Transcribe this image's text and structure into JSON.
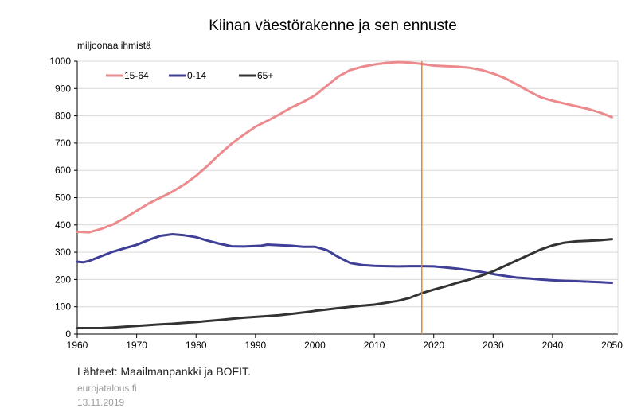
{
  "chart_data": {
    "type": "line",
    "title": "Kiinan väestörakenne ja sen ennuste",
    "ylabel": "miljoonaa ihmistä",
    "xlabel": "",
    "xlim": [
      1960,
      2051
    ],
    "ylim": [
      0,
      1000
    ],
    "x_ticks": [
      1960,
      1970,
      1980,
      1990,
      2000,
      2010,
      2020,
      2030,
      2040,
      2050
    ],
    "y_ticks": [
      0,
      100,
      200,
      300,
      400,
      500,
      600,
      700,
      800,
      900,
      1000
    ],
    "grid": "horizontal",
    "legend_position": "top-left",
    "vertical_marker_x": 2018,
    "vertical_marker_color": "#e8862a",
    "series": [
      {
        "name": "15-64",
        "color": "#ec8a8e",
        "x": [
          1960,
          1962,
          1964,
          1966,
          1968,
          1970,
          1972,
          1974,
          1976,
          1978,
          1980,
          1982,
          1984,
          1986,
          1988,
          1990,
          1992,
          1994,
          1996,
          1998,
          2000,
          2002,
          2004,
          2006,
          2008,
          2010,
          2012,
          2014,
          2016,
          2018,
          2020,
          2022,
          2024,
          2026,
          2028,
          2030,
          2032,
          2034,
          2036,
          2038,
          2040,
          2042,
          2044,
          2046,
          2048,
          2050
        ],
        "values": [
          375,
          373,
          385,
          402,
          425,
          452,
          478,
          500,
          522,
          548,
          580,
          618,
          660,
          698,
          730,
          760,
          782,
          805,
          830,
          850,
          875,
          910,
          945,
          968,
          980,
          988,
          994,
          997,
          995,
          990,
          984,
          982,
          980,
          976,
          968,
          955,
          938,
          915,
          890,
          868,
          855,
          845,
          835,
          825,
          812,
          795
        ]
      },
      {
        "name": "0-14",
        "color": "#3f3f97",
        "x": [
          1960,
          1961,
          1962,
          1964,
          1966,
          1968,
          1970,
          1972,
          1974,
          1976,
          1978,
          1980,
          1982,
          1984,
          1986,
          1988,
          1990,
          1991,
          1992,
          1994,
          1996,
          1998,
          2000,
          2002,
          2004,
          2006,
          2008,
          2010,
          2012,
          2014,
          2016,
          2018,
          2020,
          2022,
          2024,
          2026,
          2028,
          2030,
          2032,
          2034,
          2036,
          2038,
          2040,
          2042,
          2044,
          2046,
          2048,
          2050
        ],
        "values": [
          265,
          263,
          268,
          285,
          302,
          315,
          327,
          345,
          360,
          366,
          362,
          355,
          342,
          331,
          322,
          321,
          323,
          324,
          328,
          326,
          324,
          320,
          320,
          308,
          282,
          260,
          253,
          250,
          249,
          248,
          249,
          249,
          248,
          244,
          240,
          234,
          228,
          220,
          213,
          207,
          204,
          200,
          197,
          195,
          194,
          192,
          190,
          188
        ]
      },
      {
        "name": "65+",
        "color": "#333333",
        "x": [
          1960,
          1962,
          1964,
          1966,
          1968,
          1970,
          1972,
          1974,
          1976,
          1978,
          1980,
          1982,
          1984,
          1986,
          1988,
          1990,
          1992,
          1994,
          1996,
          1998,
          2000,
          2002,
          2004,
          2006,
          2008,
          2010,
          2012,
          2014,
          2016,
          2018,
          2020,
          2022,
          2024,
          2026,
          2028,
          2030,
          2032,
          2034,
          2036,
          2038,
          2040,
          2042,
          2044,
          2046,
          2048,
          2050
        ],
        "values": [
          22,
          22,
          22,
          24,
          27,
          30,
          33,
          36,
          38,
          41,
          44,
          48,
          52,
          56,
          60,
          63,
          66,
          69,
          74,
          79,
          85,
          90,
          95,
          100,
          104,
          108,
          115,
          122,
          133,
          150,
          163,
          175,
          188,
          200,
          214,
          230,
          250,
          270,
          290,
          310,
          325,
          335,
          340,
          342,
          344,
          348
        ]
      }
    ]
  },
  "footer": {
    "source": "Lähteet: Maailmanpankki ja BOFIT.",
    "site": "eurojatalous.fi",
    "date": "13.11.2019"
  }
}
